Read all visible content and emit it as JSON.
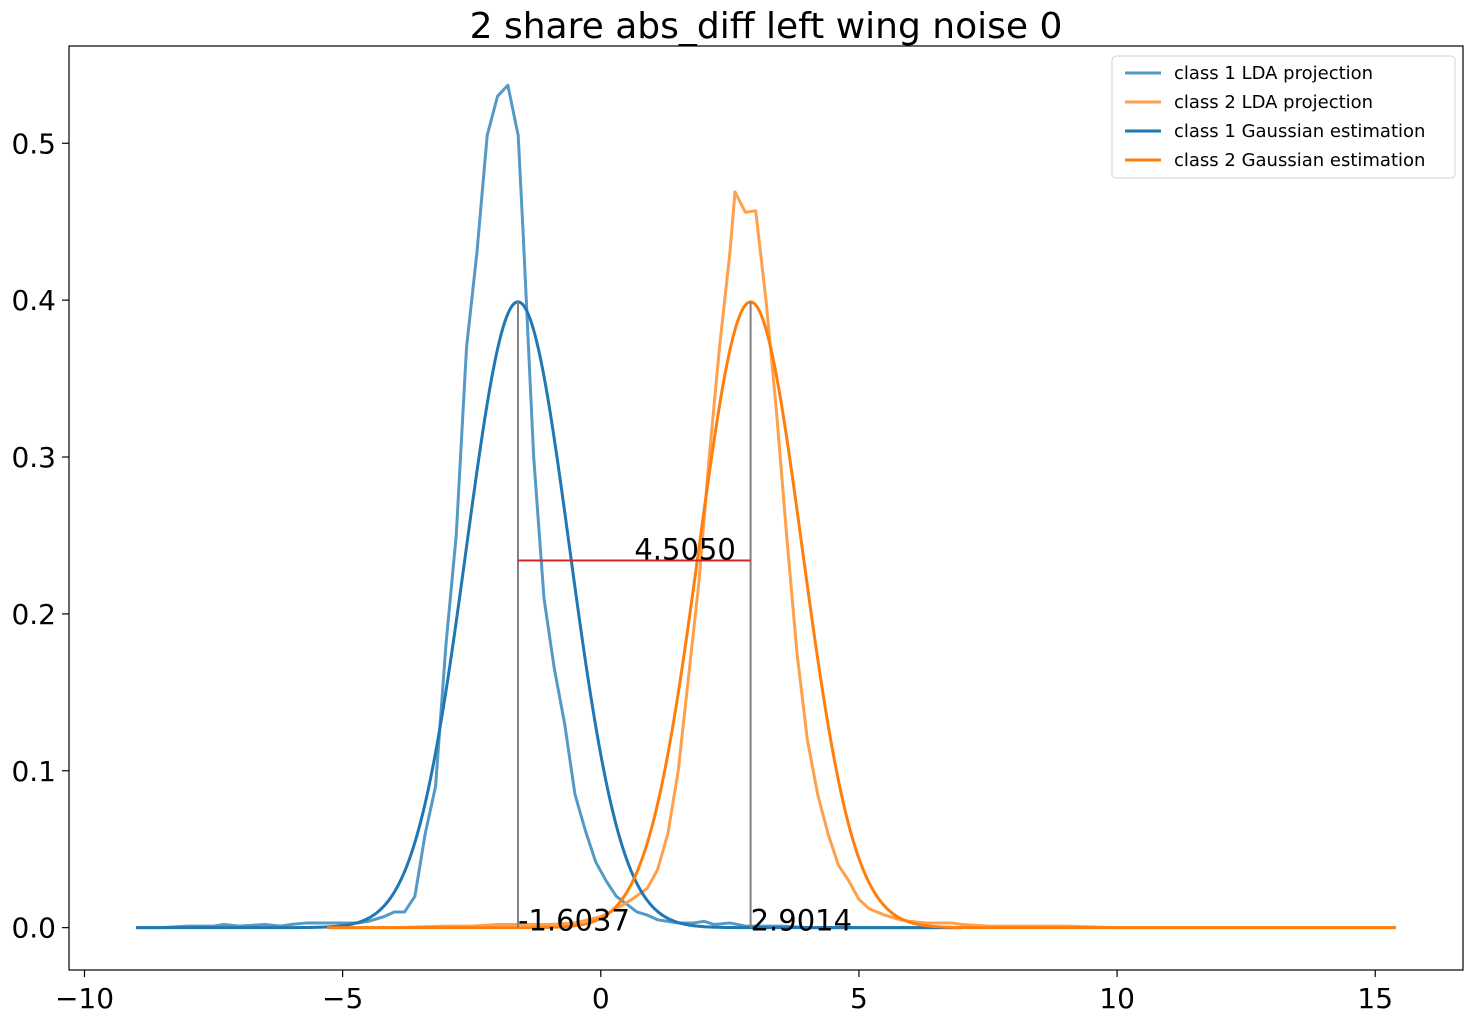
{
  "chart_data": {
    "type": "line",
    "title": "2 share abs_diff left wing noise 0",
    "xlabel": "",
    "ylabel": "",
    "xlim": [
      -10.3,
      16.7
    ],
    "ylim": [
      -0.027,
      0.562
    ],
    "x_ticks": [
      -10,
      -5,
      0,
      5,
      10,
      15
    ],
    "x_tick_labels": [
      "−10",
      "−5",
      "0",
      "5",
      "10",
      "15"
    ],
    "y_ticks": [
      0.0,
      0.1,
      0.2,
      0.3,
      0.4,
      0.5
    ],
    "y_tick_labels": [
      "0.0",
      "0.1",
      "0.2",
      "0.3",
      "0.4",
      "0.5"
    ],
    "grid": false,
    "legend_position": "upper right",
    "series": [
      {
        "name": "class 1 LDA projection",
        "color": "#5599c7",
        "x": [
          -9.0,
          -8.5,
          -8.0,
          -7.5,
          -7.3,
          -7.0,
          -6.5,
          -6.2,
          -6.0,
          -5.7,
          -5.5,
          -5.2,
          -5.0,
          -4.7,
          -4.5,
          -4.2,
          -4.0,
          -3.8,
          -3.7,
          -3.6,
          -3.5,
          -3.4,
          -3.2,
          -3.0,
          -2.8,
          -2.6,
          -2.4,
          -2.2,
          -2.0,
          -1.8,
          -1.6,
          -1.5,
          -1.3,
          -1.1,
          -0.9,
          -0.7,
          -0.5,
          -0.3,
          -0.1,
          0.1,
          0.3,
          0.5,
          0.7,
          0.9,
          1.1,
          1.3,
          1.5,
          1.8,
          2.0,
          2.2,
          2.5,
          2.8,
          3.0,
          3.5,
          4.0,
          4.5,
          5.0,
          5.5,
          6.0,
          7.0
        ],
        "y": [
          0.0,
          0.0,
          0.001,
          0.001,
          0.002,
          0.001,
          0.002,
          0.001,
          0.002,
          0.003,
          0.003,
          0.003,
          0.003,
          0.003,
          0.004,
          0.007,
          0.01,
          0.01,
          0.015,
          0.02,
          0.04,
          0.06,
          0.09,
          0.18,
          0.25,
          0.37,
          0.43,
          0.505,
          0.53,
          0.537,
          0.505,
          0.44,
          0.3,
          0.21,
          0.165,
          0.13,
          0.085,
          0.062,
          0.042,
          0.03,
          0.02,
          0.015,
          0.01,
          0.008,
          0.005,
          0.004,
          0.003,
          0.003,
          0.004,
          0.002,
          0.003,
          0.001,
          0.001,
          0.001,
          0.0,
          0.0,
          0.0,
          0.0,
          0.0,
          0.0
        ]
      },
      {
        "name": "class 2 LDA projection",
        "color": "#ffa04d",
        "x": [
          -5.3,
          -4.0,
          -3.0,
          -2.5,
          -2.0,
          -1.5,
          -1.0,
          -0.5,
          0.0,
          0.3,
          0.6,
          0.9,
          1.1,
          1.3,
          1.5,
          1.7,
          1.9,
          2.1,
          2.3,
          2.5,
          2.6,
          2.8,
          3.0,
          3.2,
          3.4,
          3.6,
          3.8,
          4.0,
          4.2,
          4.4,
          4.6,
          4.8,
          5.0,
          5.2,
          5.5,
          5.8,
          6.0,
          6.3,
          6.6,
          6.8,
          7.0,
          7.5,
          8.0,
          9.0,
          10.0,
          11.0,
          12.0,
          13.0,
          14.0,
          15.4
        ],
        "y": [
          0.0,
          0.0,
          0.001,
          0.001,
          0.002,
          0.002,
          0.002,
          0.003,
          0.007,
          0.012,
          0.018,
          0.025,
          0.037,
          0.06,
          0.1,
          0.16,
          0.22,
          0.3,
          0.37,
          0.43,
          0.469,
          0.456,
          0.457,
          0.4,
          0.33,
          0.25,
          0.175,
          0.12,
          0.085,
          0.06,
          0.04,
          0.03,
          0.018,
          0.012,
          0.008,
          0.005,
          0.004,
          0.003,
          0.003,
          0.003,
          0.002,
          0.001,
          0.001,
          0.001,
          0.0,
          0.0,
          0.0,
          0.0,
          0.0,
          0.0
        ]
      },
      {
        "name": "class 1 Gaussian estimation",
        "color": "#1f77b4",
        "gaussian": {
          "mean": -1.6037,
          "sigma": 1.0,
          "from": -9.0,
          "to": 7.0
        }
      },
      {
        "name": "class 2 Gaussian estimation",
        "color": "#ff7f0e",
        "gaussian": {
          "mean": 2.9014,
          "sigma": 1.0,
          "from": -5.3,
          "to": 15.4
        }
      }
    ],
    "annotations": {
      "mean_lines": [
        {
          "x": -1.6037,
          "y_top": 0.399,
          "label": "-1.6037",
          "color": "#808080"
        },
        {
          "x": 2.9014,
          "y_top": 0.399,
          "label": "2.9014",
          "color": "#808080"
        }
      ],
      "distance": {
        "x1": -1.6037,
        "x2": 2.9014,
        "y": 0.234,
        "label": "4.5050",
        "label_x": 0.65,
        "color": "#d62728"
      }
    }
  }
}
